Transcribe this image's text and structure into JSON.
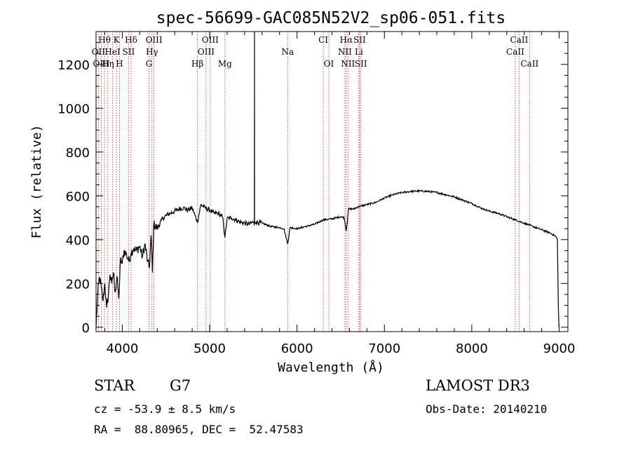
{
  "chart_data": {
    "type": "line",
    "title": "spec-56699-GAC085N52V2_sp06-051.fits",
    "xlabel": "Wavelength (Å)",
    "ylabel": "Flux (relative)",
    "xlim": [
      3700,
      9100
    ],
    "ylim": [
      -20,
      1350
    ],
    "x_ticks": [
      4000,
      5000,
      6000,
      7000,
      8000,
      9000
    ],
    "x_tick_labels": [
      "4000",
      "5000",
      "6000",
      "7000",
      "8000",
      "9000"
    ],
    "y_ticks": [
      0,
      200,
      400,
      600,
      800,
      1000,
      1200
    ],
    "y_tick_labels": [
      "0",
      "200",
      "400",
      "600",
      "800",
      "1000",
      "1200"
    ],
    "series": [
      {
        "name": "flux",
        "color": "#000000",
        "x": [
          3700,
          3720,
          3740,
          3760,
          3780,
          3800,
          3820,
          3840,
          3860,
          3880,
          3900,
          3920,
          3940,
          3960,
          3980,
          4000,
          4020,
          4050,
          4080,
          4100,
          4130,
          4160,
          4200,
          4230,
          4260,
          4290,
          4310,
          4330,
          4345,
          4360,
          4400,
          4450,
          4500,
          4550,
          4600,
          4650,
          4700,
          4750,
          4800,
          4861,
          4900,
          4950,
          5000,
          5050,
          5100,
          5150,
          5175,
          5200,
          5250,
          5300,
          5350,
          5400,
          5450,
          5500,
          5512,
          5513,
          5514,
          5530,
          5600,
          5700,
          5800,
          5850,
          5893,
          5920,
          6000,
          6100,
          6200,
          6300,
          6400,
          6500,
          6540,
          6563,
          6590,
          6650,
          6700,
          6800,
          6900,
          7000,
          7100,
          7200,
          7300,
          7400,
          7500,
          7600,
          7700,
          7800,
          7900,
          8000,
          8100,
          8200,
          8300,
          8400,
          8500,
          8600,
          8700,
          8800,
          8900,
          8960,
          8980,
          8990,
          8998
        ],
        "y": [
          0,
          160,
          230,
          180,
          120,
          200,
          90,
          140,
          240,
          200,
          250,
          160,
          230,
          130,
          310,
          290,
          350,
          330,
          300,
          340,
          360,
          350,
          370,
          320,
          380,
          300,
          270,
          420,
          250,
          470,
          450,
          490,
          510,
          520,
          530,
          540,
          545,
          535,
          545,
          480,
          560,
          545,
          535,
          520,
          520,
          500,
          410,
          495,
          500,
          490,
          480,
          475,
          470,
          480,
          465,
          1350,
          480,
          480,
          475,
          460,
          455,
          450,
          380,
          455,
          450,
          460,
          470,
          490,
          495,
          505,
          500,
          440,
          540,
          540,
          550,
          560,
          570,
          590,
          605,
          615,
          620,
          622,
          620,
          615,
          605,
          595,
          580,
          565,
          545,
          530,
          520,
          505,
          490,
          475,
          460,
          445,
          430,
          415,
          400,
          100,
          0
        ]
      }
    ],
    "spectral_lines": [
      {
        "label": "Hθ",
        "x": 3797,
        "row": 1
      },
      {
        "label": "K",
        "x": 3934,
        "row": 1
      },
      {
        "label": "Hδ",
        "x": 4101,
        "row": 1
      },
      {
        "label": "OIII",
        "x": 4363,
        "row": 1
      },
      {
        "label": "OIII",
        "x": 5007,
        "row": 1
      },
      {
        "label": "CI",
        "x": 6300,
        "row": 1
      },
      {
        "label": "Hα",
        "x": 6563,
        "row": 1
      },
      {
        "label": "SII",
        "x": 6716,
        "row": 1
      },
      {
        "label": "CaII",
        "x": 8542,
        "row": 1
      },
      {
        "label": "OII",
        "x": 3727,
        "row": 2
      },
      {
        "label": "HeI",
        "x": 3889,
        "row": 2
      },
      {
        "label": "SII",
        "x": 4072,
        "row": 2
      },
      {
        "label": "Hγ",
        "x": 4340,
        "row": 2
      },
      {
        "label": "OIII",
        "x": 4959,
        "row": 2
      },
      {
        "label": "Na",
        "x": 5893,
        "row": 2
      },
      {
        "label": "NII",
        "x": 6548,
        "row": 2
      },
      {
        "label": "Li",
        "x": 6708,
        "row": 2
      },
      {
        "label": "CaII",
        "x": 8498,
        "row": 2
      },
      {
        "label": "OIII",
        "x": 3760,
        "row": 3
      },
      {
        "label": "Hη",
        "x": 3835,
        "row": 3
      },
      {
        "label": "H",
        "x": 3968,
        "row": 3
      },
      {
        "label": "G",
        "x": 4305,
        "row": 3
      },
      {
        "label": "Hβ",
        "x": 4861,
        "row": 3
      },
      {
        "label": "Mg",
        "x": 5175,
        "row": 3
      },
      {
        "label": "OI",
        "x": 6364,
        "row": 3
      },
      {
        "label": "NII",
        "x": 6583,
        "row": 3
      },
      {
        "label": "SII",
        "x": 6731,
        "row": 3
      },
      {
        "label": "CaII",
        "x": 8662,
        "row": 3
      }
    ]
  },
  "info": {
    "class_label": "STAR",
    "subclass": "G7",
    "survey": "LAMOST DR3",
    "cz": "cz = -53.9 ± 8.5 km/s",
    "obs_date": "Obs-Date: 20140210",
    "coords": "RA =  88.80965, DEC =  52.47583"
  }
}
